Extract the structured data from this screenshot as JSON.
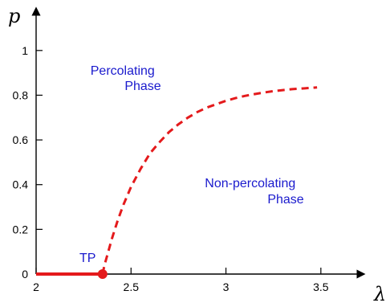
{
  "chart_data": {
    "type": "line",
    "xlabel": "λ",
    "ylabel": "p",
    "xlim": [
      2,
      3.6
    ],
    "ylim": [
      0,
      1.1
    ],
    "x_ticks": [
      2,
      2.5,
      3,
      3.5
    ],
    "x_tick_labels": [
      "2",
      "2.5",
      "3",
      "3.5"
    ],
    "y_ticks": [
      0,
      0.2,
      0.4,
      0.6,
      0.8,
      1
    ],
    "y_tick_labels": [
      "0",
      "0.2",
      "0.4",
      "0.6",
      "0.8",
      "1"
    ],
    "grid": false,
    "series": [
      {
        "style": "dashed",
        "color": "#e41a1c",
        "x": [
          2.35,
          2.36,
          2.38,
          2.4,
          2.43,
          2.46,
          2.5,
          2.55,
          2.6,
          2.65,
          2.7,
          2.75,
          2.8,
          2.85,
          2.9,
          2.95,
          3.0,
          3.05,
          3.1,
          3.15,
          3.2,
          3.25,
          3.3,
          3.35,
          3.4,
          3.45,
          3.48
        ],
        "y": [
          0.0,
          0.04,
          0.1,
          0.16,
          0.24,
          0.31,
          0.39,
          0.47,
          0.54,
          0.59,
          0.635,
          0.67,
          0.7,
          0.725,
          0.745,
          0.76,
          0.775,
          0.787,
          0.797,
          0.805,
          0.812,
          0.818,
          0.823,
          0.827,
          0.83,
          0.833,
          0.835
        ]
      },
      {
        "style": "solid",
        "color": "#e41a1c",
        "x": [
          2.0,
          2.35
        ],
        "y": [
          0,
          0
        ]
      }
    ],
    "point": {
      "x": 2.35,
      "y": 0,
      "color": "#e41a1c"
    },
    "annotations": {
      "tp": "TP",
      "percolating_line1": "Percolating",
      "percolating_line2": "Phase",
      "nonperc_line1": "Non-percolating",
      "nonperc_line2": "Phase"
    },
    "label_color": "#1a1acd"
  }
}
